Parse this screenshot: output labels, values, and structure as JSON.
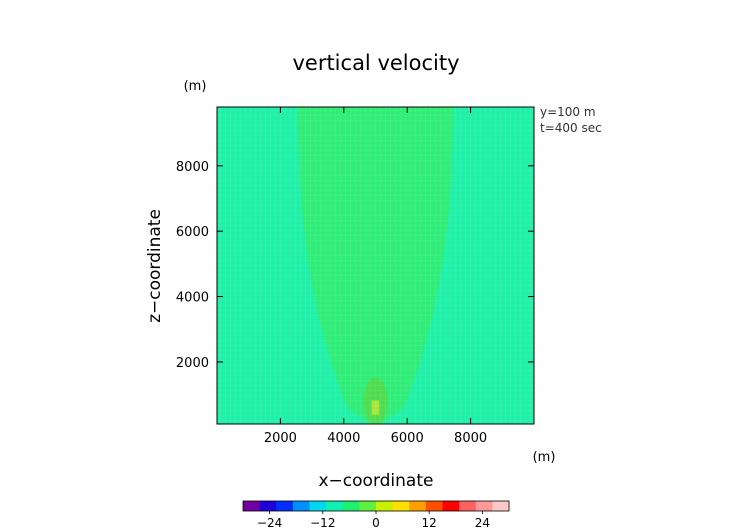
{
  "chart_data": {
    "type": "heatmap",
    "title": "vertical velocity",
    "xlabel": "x−coordinate",
    "ylabel": "z−coordinate",
    "x_unit": "(m)",
    "y_unit": "(m)",
    "annotations": [
      "y=100 m",
      "t=400 sec"
    ],
    "xlim": [
      0,
      10000
    ],
    "ylim": [
      100,
      9800
    ],
    "x_ticks": [
      2000,
      4000,
      6000,
      8000
    ],
    "x_tick_labels": [
      "2000",
      "4000",
      "6000",
      "8000"
    ],
    "y_ticks": [
      2000,
      4000,
      6000,
      8000
    ],
    "y_tick_labels": [
      "2000",
      "4000",
      "6000",
      "8000"
    ],
    "background_level": 0,
    "background_color": "#20f0a8",
    "regions": [
      {
        "shape": "plume",
        "level": 3,
        "color": "#30ec78",
        "center_x": 5000,
        "base_z": 100,
        "top_z": 9800,
        "top_half_width": 2450,
        "neck_half_width": 900,
        "neck_z": 600
      },
      {
        "shape": "ellipse",
        "level": 5,
        "color": "#4fdc50",
        "center_x": 5000,
        "center_z": 800,
        "half_width": 380,
        "half_height": 720
      },
      {
        "shape": "rect",
        "level": 8,
        "color": "#a4e83c",
        "center_x": 5000,
        "center_z": 600,
        "half_width": 120,
        "half_height": 220
      }
    ],
    "colorbar": {
      "min": -30,
      "max": 30,
      "ticks": [
        -24,
        -12,
        0,
        12,
        24
      ],
      "tick_labels": [
        "−24",
        "−12",
        "0",
        "12",
        "24"
      ],
      "stops": [
        "#7000a0",
        "#2000d8",
        "#0030ff",
        "#0090ff",
        "#00d8f0",
        "#10f0b0",
        "#20f070",
        "#60f040",
        "#c8f000",
        "#ffe000",
        "#ffa000",
        "#ff5000",
        "#ff0000",
        "#ff6060",
        "#ff9898",
        "#ffc8c8"
      ]
    }
  }
}
